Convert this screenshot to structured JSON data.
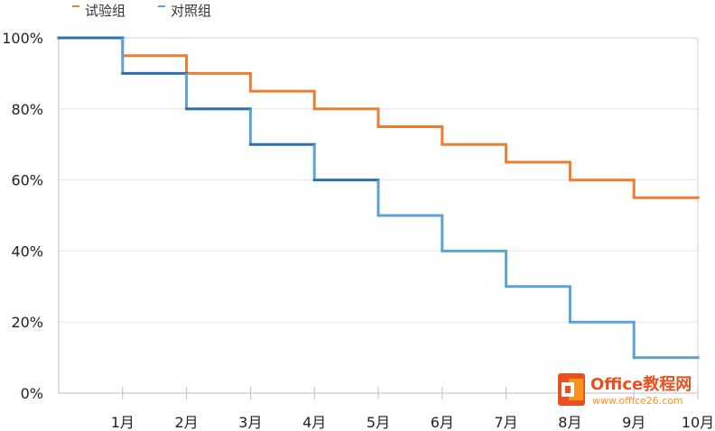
{
  "chart_data": {
    "type": "line",
    "title": "",
    "xlabel": "",
    "ylabel": "",
    "step": true,
    "categories": [
      "1月",
      "2月",
      "3月",
      "4月",
      "5月",
      "6月",
      "7月",
      "8月",
      "9月",
      "10月"
    ],
    "ylim": [
      0,
      100
    ],
    "y_ticks": [
      "0%",
      "20%",
      "40%",
      "60%",
      "80%",
      "100%"
    ],
    "y_tick_values": [
      0,
      20,
      40,
      60,
      80,
      100
    ],
    "grid": true,
    "legend_position": "top-left",
    "series": [
      {
        "name": "试验组",
        "color": "#ED7D31",
        "x": [
          0,
          1,
          2,
          3,
          4,
          5,
          6,
          7,
          8,
          9,
          10
        ],
        "values": [
          100,
          95,
          90,
          85,
          80,
          75,
          70,
          65,
          60,
          55,
          55
        ]
      },
      {
        "name": "对照组",
        "color": "#5BA3D6",
        "early_color": "#2E6FAE",
        "x": [
          0,
          1,
          2,
          3,
          4,
          5,
          6,
          7,
          8,
          9,
          10
        ],
        "values": [
          100,
          90,
          80,
          70,
          60,
          50,
          40,
          30,
          20,
          10,
          10
        ]
      }
    ]
  },
  "watermark": {
    "brand": "Office教程网",
    "url": "www.office26.com",
    "logo_colors": [
      "#E8501E",
      "#F7931E"
    ]
  }
}
